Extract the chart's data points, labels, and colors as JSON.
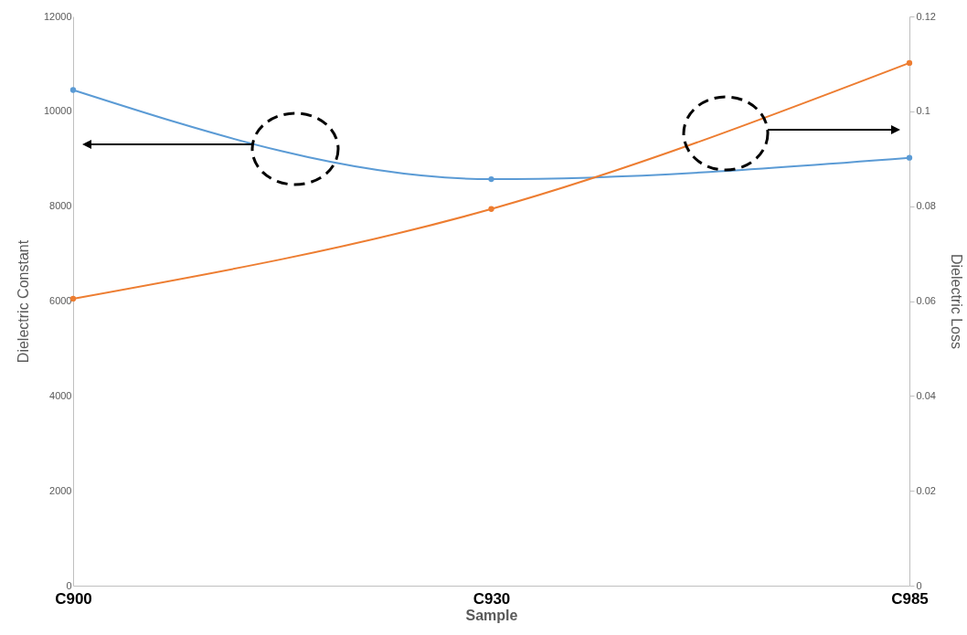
{
  "chart_data": {
    "type": "line",
    "xlabel": "Sample",
    "ylabel": "Dielectric Constant",
    "y2label": "Dielectric Loss",
    "categories": [
      "C900",
      "C930",
      "C985"
    ],
    "series": [
      {
        "color": "#5b9bd5",
        "values": [
          10450,
          8570,
          9020
        ]
      },
      {
        "color": "#ed7d31",
        "values": [
          0.0605,
          0.0794,
          0.1102
        ],
        "axis": "y2"
      }
    ],
    "ylim": [
      0,
      12000
    ],
    "yticks": [
      0,
      2000,
      4000,
      6000,
      8000,
      10000,
      12000
    ],
    "y2lim": [
      0,
      0.12
    ],
    "y2ticks": [
      0,
      0.02,
      0.04,
      0.06,
      0.08,
      0.1,
      0.12
    ],
    "marker": "circle"
  }
}
